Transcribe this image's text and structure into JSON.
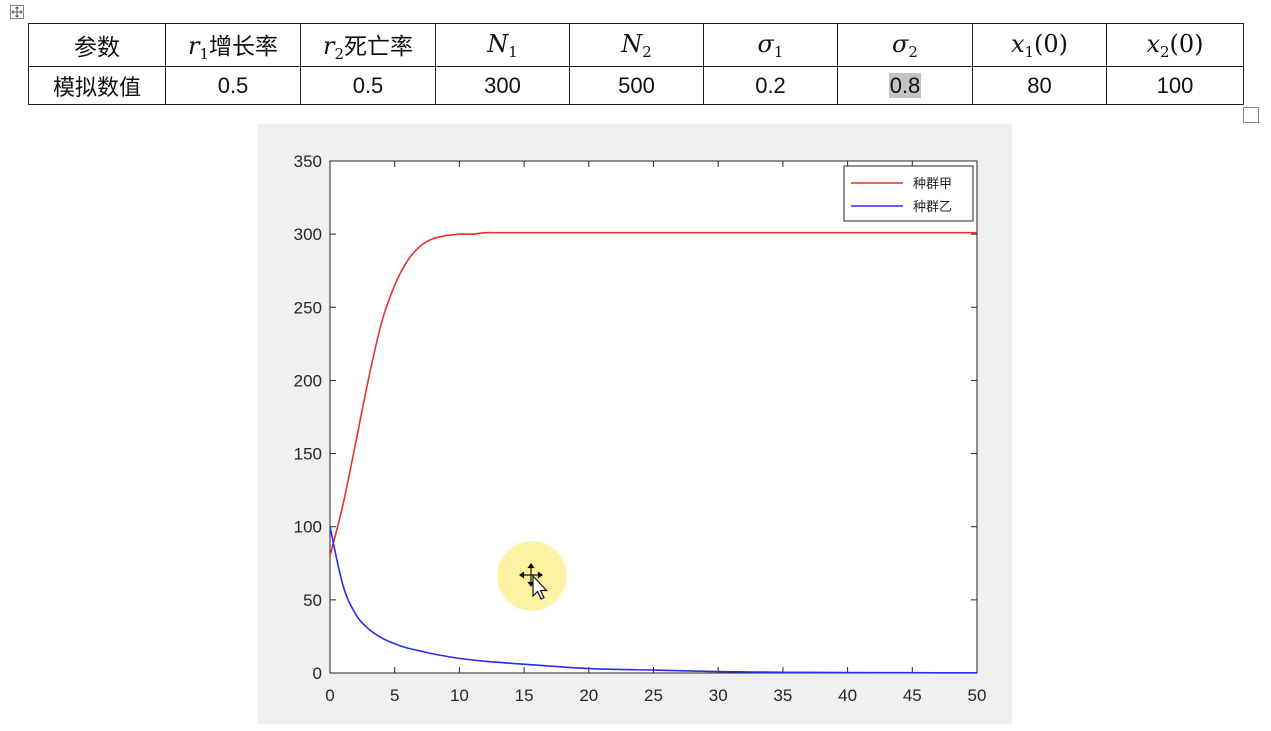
{
  "table": {
    "header": {
      "row_label": "参数",
      "r1_sym": "r",
      "r1_sub": "1",
      "r1_text": "增长率",
      "r2_sym": "r",
      "r2_sub": "2",
      "r2_text": "死亡率",
      "N1_sym": "N",
      "N1_sub": "1",
      "N2_sym": "N",
      "N2_sub": "2",
      "s1_sym": "σ",
      "s1_sub": "1",
      "s2_sym": "σ",
      "s2_sub": "2",
      "x1_sym": "x",
      "x1_sub": "1",
      "x1_arg": "(0)",
      "x2_sym": "x",
      "x2_sub": "2",
      "x2_arg": "(0)"
    },
    "values": {
      "row_label": "模拟数值",
      "r1": "0.5",
      "r2": "0.5",
      "N1": "300",
      "N2": "500",
      "s1": "0.2",
      "s2": "0.8",
      "x1_0": "80",
      "x2_0": "100"
    }
  },
  "chart_data": {
    "type": "line",
    "title": "",
    "xlabel": "",
    "ylabel": "",
    "xlim": [
      0,
      50
    ],
    "ylim": [
      0,
      350
    ],
    "xticks": [
      "0",
      "5",
      "10",
      "15",
      "20",
      "25",
      "30",
      "35",
      "40",
      "45",
      "50"
    ],
    "yticks": [
      "0",
      "50",
      "100",
      "150",
      "200",
      "250",
      "300",
      "350"
    ],
    "grid": false,
    "legend_position": "top-right",
    "series": [
      {
        "name": "种群甲",
        "color": "#e8322b",
        "x": [
          0,
          1,
          2,
          3,
          4,
          5,
          6,
          7,
          8,
          9,
          10,
          11,
          12,
          13,
          14,
          15,
          20,
          25,
          30,
          35,
          40,
          45,
          50
        ],
        "values": [
          80,
          115,
          158,
          202,
          240,
          265,
          282,
          292,
          297,
          299,
          300,
          300,
          301,
          301,
          301,
          301,
          301,
          301,
          301,
          301,
          301,
          301,
          301
        ]
      },
      {
        "name": "种群乙",
        "color": "#2a2ee8",
        "x": [
          0,
          1,
          2,
          3,
          4,
          5,
          6,
          7,
          8,
          10,
          12,
          15,
          20,
          25,
          30,
          35,
          40,
          45,
          50
        ],
        "values": [
          100,
          60,
          40,
          30,
          24,
          20,
          17,
          15,
          13,
          10,
          8,
          6,
          3,
          2,
          1,
          0.5,
          0.3,
          0.2,
          0.1
        ]
      }
    ]
  }
}
